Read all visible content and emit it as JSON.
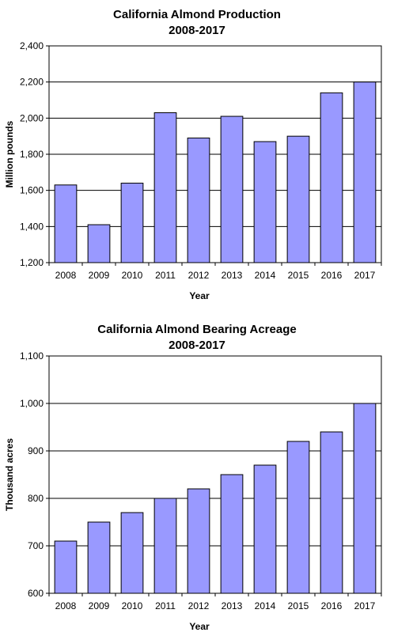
{
  "chart_data": [
    {
      "type": "bar",
      "title": "California Almond Production",
      "subtitle": "2008-2017",
      "xlabel": "Year",
      "ylabel": "Million pounds",
      "categories": [
        "2008",
        "2009",
        "2010",
        "2011",
        "2012",
        "2013",
        "2014",
        "2015",
        "2016",
        "2017"
      ],
      "values": [
        1630,
        1410,
        1640,
        2030,
        1890,
        2010,
        1870,
        1900,
        2140,
        2200
      ],
      "ylim": [
        1200,
        2400
      ],
      "yticks": [
        "1,200",
        "1,400",
        "1,600",
        "1,800",
        "2,000",
        "2,200",
        "2,400"
      ],
      "ytick_values": [
        1200,
        1400,
        1600,
        1800,
        2000,
        2200,
        2400
      ],
      "grid": "horizontal",
      "bar_color": "#9999FF"
    },
    {
      "type": "bar",
      "title": "California Almond Bearing Acreage",
      "subtitle": "2008-2017",
      "xlabel": "Year",
      "ylabel": "Thousand acres",
      "categories": [
        "2008",
        "2009",
        "2010",
        "2011",
        "2012",
        "2013",
        "2014",
        "2015",
        "2016",
        "2017"
      ],
      "values": [
        710,
        750,
        770,
        800,
        820,
        850,
        870,
        920,
        940,
        1000
      ],
      "ylim": [
        600,
        1100
      ],
      "yticks": [
        "600",
        "700",
        "800",
        "900",
        "1,000",
        "1,100"
      ],
      "ytick_values": [
        600,
        700,
        800,
        900,
        1000,
        1100
      ],
      "grid": "horizontal",
      "bar_color": "#9999FF"
    }
  ]
}
